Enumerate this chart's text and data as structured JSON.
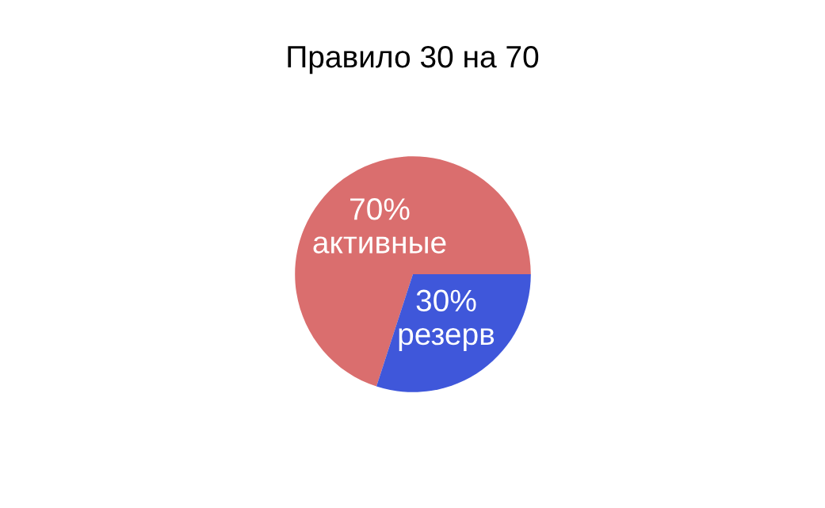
{
  "chart_data": {
    "type": "pie",
    "title": "Правило 30 на 70",
    "categories": [
      "активные",
      "резерв"
    ],
    "values": [
      70,
      30
    ],
    "colors": [
      "#da6e6e",
      "#3f57da"
    ],
    "value_labels": [
      "70%",
      "30%"
    ]
  }
}
